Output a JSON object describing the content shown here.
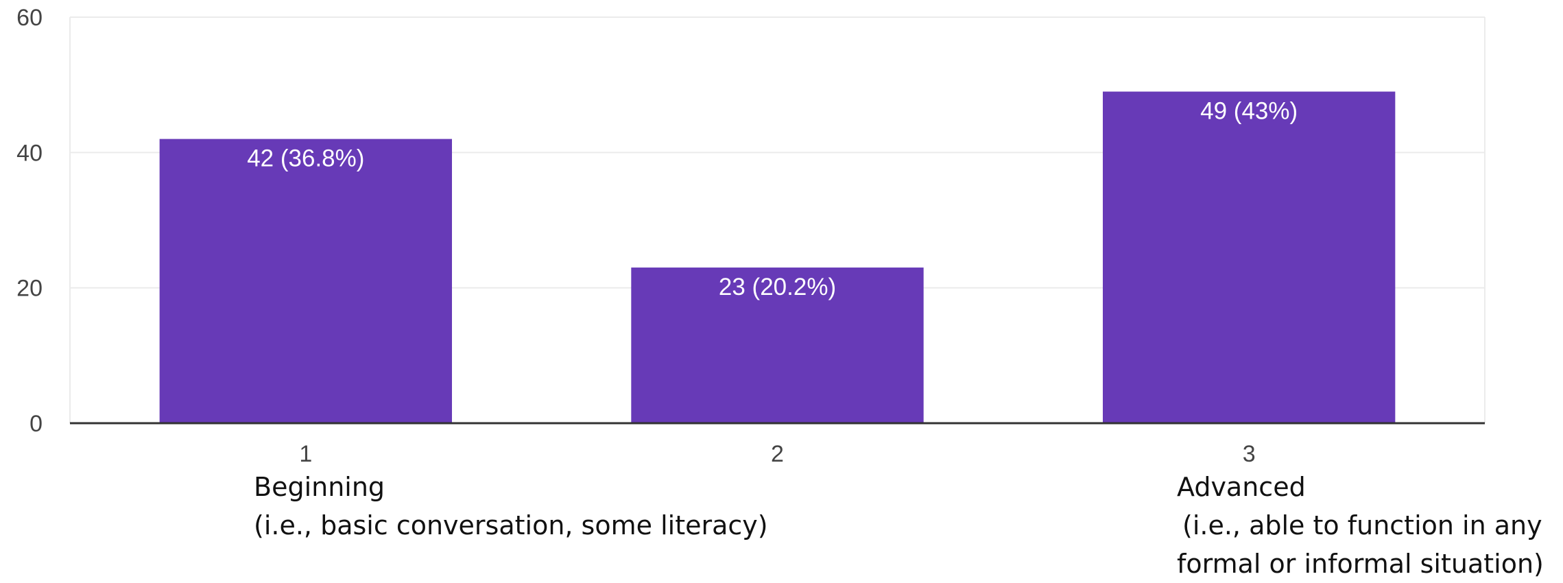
{
  "chart_data": {
    "type": "bar",
    "categories": [
      "1",
      "2",
      "3"
    ],
    "values": [
      42,
      23,
      49
    ],
    "data_labels": [
      "42 (36.8%)",
      "23 (20.2%)",
      "49 (43%)"
    ],
    "yticks": [
      "0",
      "20",
      "40",
      "60"
    ],
    "ylim": [
      0,
      60
    ],
    "grid": true,
    "bar_color": "#673ab7",
    "grid_color": "#ebebeb",
    "axis_color": "#333333"
  },
  "annotations": {
    "beginning": {
      "title": "Beginning",
      "desc": "(i.e., basic conversation, some literacy)"
    },
    "advanced": {
      "title": "Advanced",
      "desc_line1": "(i.e., able to function in any",
      "desc_line2": "formal or informal situation)"
    }
  }
}
